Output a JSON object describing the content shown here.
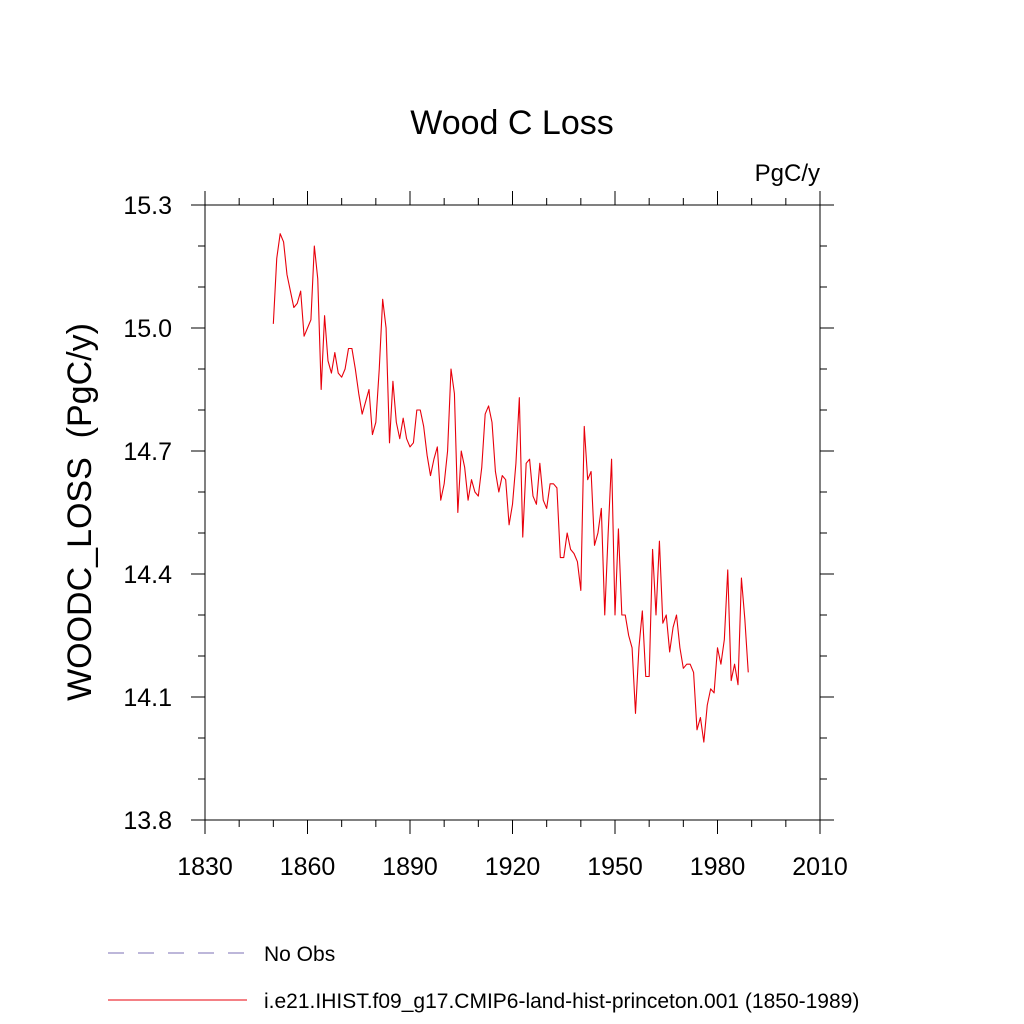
{
  "chart_data": {
    "type": "line",
    "title": "Wood C Loss",
    "units_label": "PgC/y",
    "ylabel": "WOODC_LOSS  (PgC/y)",
    "xlabel": "",
    "xlim": [
      1830,
      2010
    ],
    "ylim": [
      13.8,
      15.3
    ],
    "x_ticks": [
      "1830",
      "1860",
      "1890",
      "1920",
      "1950",
      "1980",
      "2010"
    ],
    "y_ticks": [
      "13.8",
      "14.1",
      "14.4",
      "14.7",
      "15.0",
      "15.3"
    ],
    "legend": [
      {
        "label": "No Obs",
        "style": "dashed",
        "color": "#7b6fb5"
      },
      {
        "label": "i.e21.IHIST.f09_g17.CMIP6-land-hist-princeton.001 (1850-1989)",
        "style": "solid",
        "color": "#e8000b"
      }
    ],
    "series": [
      {
        "color": "#e8000b",
        "x_start": 1850,
        "values": [
          15.01,
          15.17,
          15.23,
          15.21,
          15.13,
          15.09,
          15.05,
          15.06,
          15.09,
          14.98,
          15.0,
          15.02,
          15.2,
          15.12,
          14.85,
          15.03,
          14.92,
          14.89,
          14.94,
          14.89,
          14.88,
          14.9,
          14.95,
          14.95,
          14.9,
          14.84,
          14.79,
          14.82,
          14.85,
          14.74,
          14.77,
          14.9,
          15.07,
          15.0,
          14.72,
          14.87,
          14.77,
          14.73,
          14.78,
          14.73,
          14.71,
          14.72,
          14.8,
          14.8,
          14.76,
          14.69,
          14.64,
          14.68,
          14.71,
          14.58,
          14.62,
          14.7,
          14.9,
          14.84,
          14.55,
          14.7,
          14.66,
          14.58,
          14.63,
          14.6,
          14.59,
          14.66,
          14.79,
          14.81,
          14.77,
          14.65,
          14.6,
          14.64,
          14.63,
          14.52,
          14.57,
          14.67,
          14.83,
          14.49,
          14.67,
          14.68,
          14.59,
          14.57,
          14.67,
          14.58,
          14.56,
          14.62,
          14.62,
          14.61,
          14.44,
          14.44,
          14.5,
          14.46,
          14.45,
          14.43,
          14.36,
          14.76,
          14.63,
          14.65,
          14.47,
          14.5,
          14.56,
          14.3,
          14.5,
          14.68,
          14.3,
          14.51,
          14.3,
          14.3,
          14.25,
          14.22,
          14.06,
          14.22,
          14.31,
          14.15,
          14.15,
          14.46,
          14.3,
          14.48,
          14.28,
          14.3,
          14.21,
          14.27,
          14.3,
          14.22,
          14.17,
          14.18,
          14.18,
          14.16,
          14.02,
          14.05,
          13.99,
          14.08,
          14.12,
          14.11,
          14.22,
          14.18,
          14.24,
          14.41,
          14.14,
          14.18,
          14.13,
          14.39,
          14.29,
          14.16
        ]
      }
    ]
  }
}
